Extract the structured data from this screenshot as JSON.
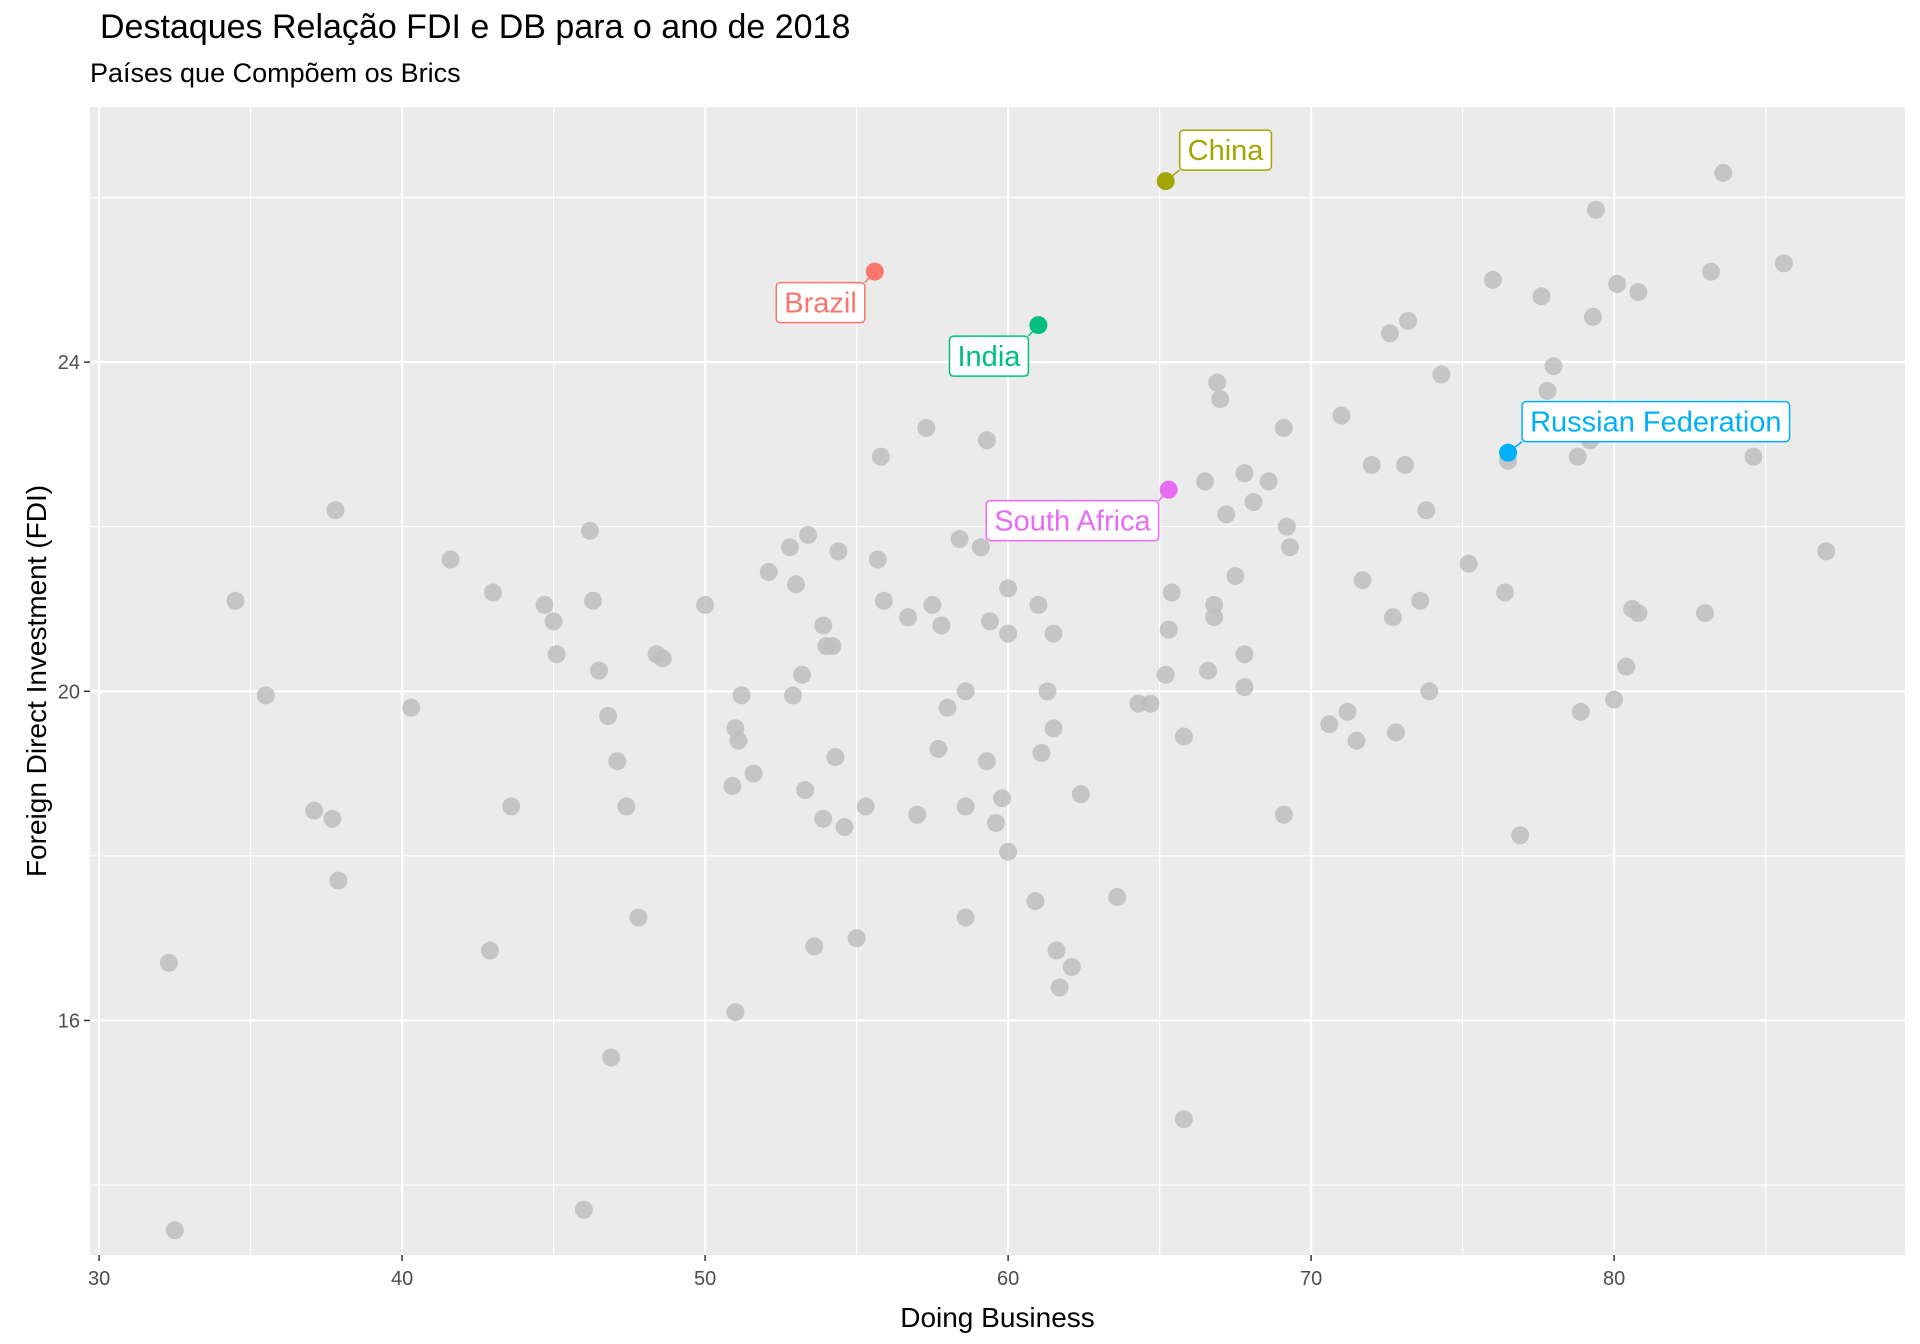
{
  "chart_data": {
    "type": "scatter",
    "title": "Destaques Relação FDI e DB para o ano de 2018",
    "subtitle": "Países que Compõem os Brics",
    "xlabel": "Doing Business",
    "ylabel": "Foreign Direct Investment (FDI)",
    "xlim": [
      29.7,
      89.6
    ],
    "ylim": [
      13.15,
      27.1
    ],
    "x_ticks": [
      30,
      40,
      50,
      60,
      70,
      80
    ],
    "y_ticks": [
      16,
      20,
      24
    ],
    "grid": true,
    "legend": "none",
    "background_color": "#ebebeb",
    "grid_color": "#ffffff",
    "point_color": "#bebebe",
    "highlighted": [
      {
        "name": "Brazil",
        "x": 55.6,
        "y": 25.1,
        "color": "#f8766d",
        "label_position": "bottom-left"
      },
      {
        "name": "China",
        "x": 65.2,
        "y": 26.2,
        "color": "#a3a500",
        "label_position": "top-right"
      },
      {
        "name": "India",
        "x": 61.0,
        "y": 24.45,
        "color": "#00bf7d",
        "label_position": "bottom-left"
      },
      {
        "name": "Russian Federation",
        "x": 76.5,
        "y": 22.9,
        "color": "#00b0f6",
        "label_position": "top-right"
      },
      {
        "name": "South Africa",
        "x": 65.3,
        "y": 22.45,
        "color": "#e76bf3",
        "label_position": "bottom-left"
      }
    ],
    "points": [
      [
        32.3,
        16.7
      ],
      [
        32.5,
        13.45
      ],
      [
        34.5,
        21.1
      ],
      [
        35.5,
        19.95
      ],
      [
        37.1,
        18.55
      ],
      [
        37.7,
        18.45
      ],
      [
        37.8,
        22.2
      ],
      [
        37.9,
        17.7
      ],
      [
        40.3,
        19.8
      ],
      [
        41.6,
        21.6
      ],
      [
        42.9,
        16.85
      ],
      [
        43.0,
        21.2
      ],
      [
        43.6,
        18.6
      ],
      [
        44.7,
        21.05
      ],
      [
        45.0,
        20.85
      ],
      [
        45.1,
        20.45
      ],
      [
        46.0,
        13.7
      ],
      [
        46.2,
        21.95
      ],
      [
        46.3,
        21.1
      ],
      [
        46.5,
        20.25
      ],
      [
        46.8,
        19.7
      ],
      [
        46.9,
        15.55
      ],
      [
        47.1,
        19.15
      ],
      [
        47.4,
        18.6
      ],
      [
        47.8,
        17.25
      ],
      [
        48.4,
        20.45
      ],
      [
        48.6,
        20.4
      ],
      [
        50.0,
        21.05
      ],
      [
        50.9,
        18.85
      ],
      [
        51.0,
        16.1
      ],
      [
        51.0,
        19.55
      ],
      [
        51.1,
        19.4
      ],
      [
        51.2,
        19.95
      ],
      [
        51.6,
        19.0
      ],
      [
        52.1,
        21.45
      ],
      [
        52.8,
        21.75
      ],
      [
        52.9,
        19.95
      ],
      [
        53.0,
        21.3
      ],
      [
        53.2,
        20.2
      ],
      [
        53.3,
        18.8
      ],
      [
        53.4,
        21.9
      ],
      [
        53.6,
        16.9
      ],
      [
        53.9,
        20.8
      ],
      [
        53.9,
        18.45
      ],
      [
        54.0,
        20.55
      ],
      [
        54.2,
        20.55
      ],
      [
        54.3,
        19.2
      ],
      [
        54.4,
        21.7
      ],
      [
        54.6,
        18.35
      ],
      [
        55.0,
        17.0
      ],
      [
        55.3,
        18.6
      ],
      [
        55.7,
        21.6
      ],
      [
        55.8,
        22.85
      ],
      [
        55.9,
        21.1
      ],
      [
        56.7,
        20.9
      ],
      [
        57.0,
        18.5
      ],
      [
        57.3,
        23.2
      ],
      [
        57.5,
        21.05
      ],
      [
        57.7,
        19.3
      ],
      [
        57.8,
        20.8
      ],
      [
        58.0,
        19.8
      ],
      [
        58.4,
        21.85
      ],
      [
        58.6,
        20.0
      ],
      [
        58.6,
        18.6
      ],
      [
        58.6,
        17.25
      ],
      [
        59.1,
        21.75
      ],
      [
        59.3,
        19.15
      ],
      [
        59.3,
        23.05
      ],
      [
        59.4,
        20.85
      ],
      [
        59.6,
        18.4
      ],
      [
        59.8,
        18.7
      ],
      [
        60.0,
        20.7
      ],
      [
        60.0,
        18.05
      ],
      [
        60.0,
        21.25
      ],
      [
        60.9,
        17.45
      ],
      [
        61.0,
        21.05
      ],
      [
        61.1,
        19.25
      ],
      [
        61.3,
        20.0
      ],
      [
        61.5,
        19.55
      ],
      [
        61.5,
        20.7
      ],
      [
        61.6,
        16.85
      ],
      [
        61.7,
        16.4
      ],
      [
        62.1,
        16.65
      ],
      [
        62.4,
        18.75
      ],
      [
        63.6,
        17.5
      ],
      [
        64.3,
        19.85
      ],
      [
        64.7,
        19.85
      ],
      [
        65.2,
        20.2
      ],
      [
        65.3,
        20.75
      ],
      [
        65.4,
        21.2
      ],
      [
        65.8,
        19.45
      ],
      [
        65.8,
        14.8
      ],
      [
        66.5,
        22.55
      ],
      [
        66.6,
        20.25
      ],
      [
        66.8,
        21.05
      ],
      [
        66.8,
        20.9
      ],
      [
        66.9,
        23.75
      ],
      [
        67.0,
        23.55
      ],
      [
        67.2,
        22.15
      ],
      [
        67.5,
        21.4
      ],
      [
        67.8,
        20.05
      ],
      [
        67.8,
        20.45
      ],
      [
        67.8,
        22.65
      ],
      [
        68.1,
        22.3
      ],
      [
        68.6,
        22.55
      ],
      [
        69.1,
        18.5
      ],
      [
        69.1,
        23.2
      ],
      [
        69.2,
        22.0
      ],
      [
        69.3,
        21.75
      ],
      [
        70.6,
        19.6
      ],
      [
        71.0,
        23.35
      ],
      [
        71.2,
        19.75
      ],
      [
        71.5,
        19.4
      ],
      [
        71.7,
        21.35
      ],
      [
        72.0,
        22.75
      ],
      [
        72.6,
        24.35
      ],
      [
        72.7,
        20.9
      ],
      [
        72.8,
        19.5
      ],
      [
        73.1,
        22.75
      ],
      [
        73.2,
        24.5
      ],
      [
        73.6,
        21.1
      ],
      [
        73.8,
        22.2
      ],
      [
        73.9,
        20.0
      ],
      [
        74.3,
        23.85
      ],
      [
        75.2,
        21.55
      ],
      [
        76.0,
        25.0
      ],
      [
        76.4,
        21.2
      ],
      [
        76.5,
        22.8
      ],
      [
        76.9,
        18.25
      ],
      [
        77.6,
        24.8
      ],
      [
        77.8,
        23.65
      ],
      [
        78.0,
        23.95
      ],
      [
        78.8,
        22.85
      ],
      [
        78.9,
        19.75
      ],
      [
        79.2,
        23.05
      ],
      [
        79.3,
        24.55
      ],
      [
        79.4,
        25.85
      ],
      [
        80.0,
        19.9
      ],
      [
        80.1,
        24.95
      ],
      [
        80.4,
        20.3
      ],
      [
        80.6,
        21.0
      ],
      [
        80.8,
        20.95
      ],
      [
        80.8,
        24.85
      ],
      [
        83.0,
        20.95
      ],
      [
        83.2,
        25.1
      ],
      [
        83.6,
        26.3
      ],
      [
        84.0,
        23.25
      ],
      [
        84.6,
        22.85
      ],
      [
        85.6,
        25.2
      ],
      [
        87.0,
        21.7
      ]
    ]
  }
}
